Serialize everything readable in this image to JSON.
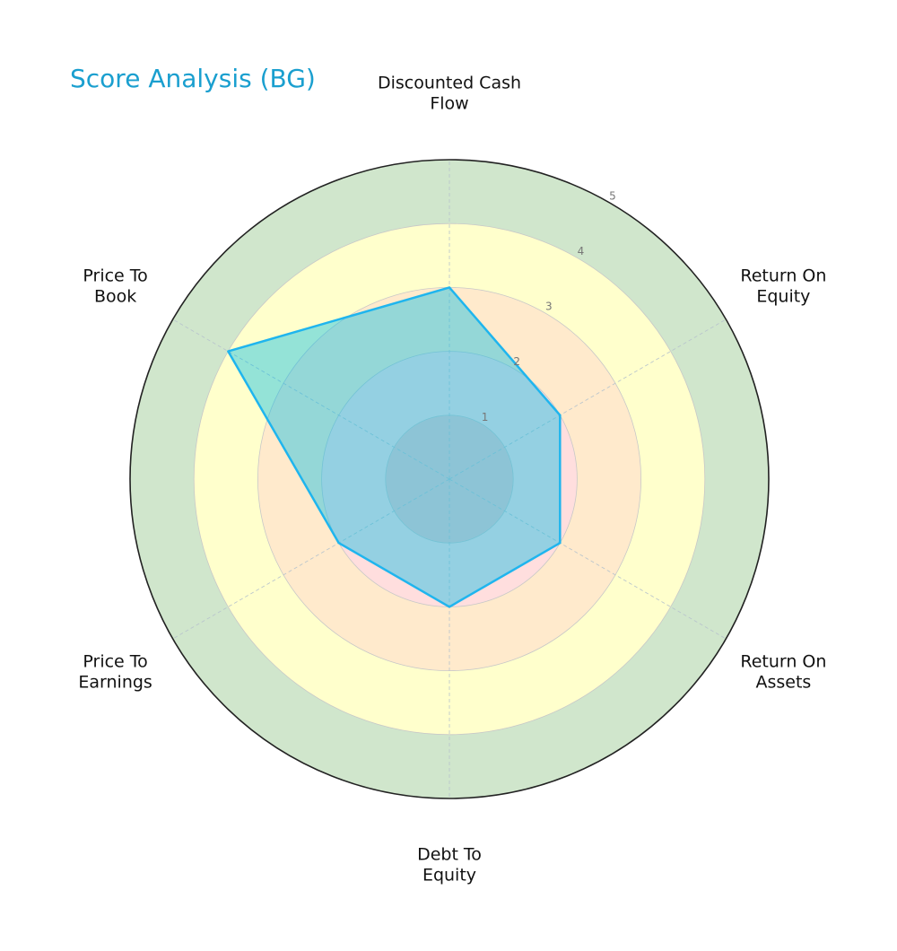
{
  "chart_data": {
    "type": "radar",
    "title": "Score Analysis (BG)",
    "categories": [
      "Discounted Cash\nFlow",
      "Return On\nEquity",
      "Return On\nAssets",
      "Debt To\nEquity",
      "Price To\nEarnings",
      "Price To\nBook"
    ],
    "values": [
      3,
      2,
      2,
      2,
      2,
      4
    ],
    "color": "#1fb5ee",
    "rlim": [
      0,
      5
    ],
    "rticks": [
      1,
      2,
      3,
      4,
      5
    ],
    "band_colors": [
      "#f3caca",
      "#ffdede",
      "#ffeacc",
      "#ffffcc",
      "#d0e6cc"
    ],
    "grid": true
  }
}
